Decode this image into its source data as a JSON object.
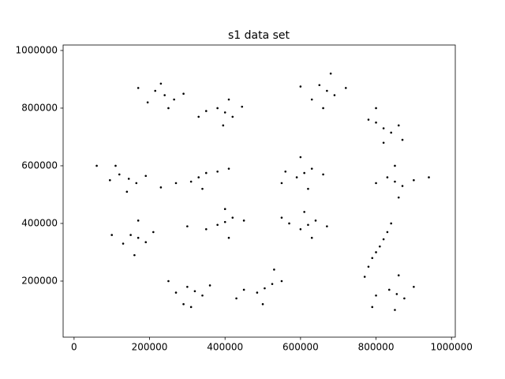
{
  "chart_data": {
    "type": "scatter",
    "title": "s1 data set",
    "color": "#000000",
    "x": [
      240000,
      215000,
      265000,
      230000,
      290000,
      195000,
      250000,
      170000,
      400000,
      380000,
      420000,
      350000,
      445000,
      395000,
      330000,
      410000,
      670000,
      650000,
      690000,
      680000,
      630000,
      720000,
      660000,
      600000,
      820000,
      800000,
      840000,
      780000,
      860000,
      820000,
      800000,
      870000,
      145000,
      120000,
      165000,
      95000,
      190000,
      140000,
      60000,
      110000,
      330000,
      310000,
      350000,
      270000,
      380000,
      230000,
      410000,
      340000,
      610000,
      590000,
      630000,
      560000,
      660000,
      600000,
      620000,
      550000,
      850000,
      830000,
      870000,
      800000,
      900000,
      850000,
      860000,
      940000,
      400000,
      380000,
      420000,
      350000,
      450000,
      300000,
      400000,
      410000,
      620000,
      600000,
      640000,
      570000,
      670000,
      610000,
      630000,
      550000,
      170000,
      150000,
      190000,
      130000,
      210000,
      170000,
      160000,
      100000,
      770000,
      780000,
      790000,
      800000,
      810000,
      820000,
      830000,
      840000,
      320000,
      300000,
      340000,
      270000,
      360000,
      310000,
      250000,
      290000,
      505000,
      485000,
      525000,
      450000,
      550000,
      500000,
      430000,
      530000,
      855000,
      835000,
      875000,
      800000,
      900000,
      850000,
      860000,
      790000
    ],
    "values": [
      845000,
      860000,
      830000,
      885000,
      850000,
      820000,
      800000,
      870000,
      785000,
      800000,
      770000,
      790000,
      805000,
      740000,
      770000,
      830000,
      860000,
      880000,
      845000,
      920000,
      830000,
      870000,
      800000,
      875000,
      730000,
      750000,
      715000,
      760000,
      740000,
      680000,
      800000,
      690000,
      555000,
      570000,
      540000,
      550000,
      565000,
      510000,
      600000,
      600000,
      560000,
      545000,
      575000,
      540000,
      580000,
      525000,
      590000,
      520000,
      575000,
      560000,
      590000,
      580000,
      570000,
      630000,
      520000,
      540000,
      545000,
      560000,
      530000,
      540000,
      550000,
      600000,
      490000,
      560000,
      405000,
      395000,
      420000,
      380000,
      410000,
      390000,
      450000,
      350000,
      395000,
      380000,
      410000,
      400000,
      390000,
      440000,
      350000,
      420000,
      350000,
      360000,
      335000,
      330000,
      370000,
      410000,
      290000,
      360000,
      215000,
      250000,
      280000,
      300000,
      320000,
      345000,
      370000,
      400000,
      165000,
      180000,
      150000,
      160000,
      185000,
      110000,
      200000,
      120000,
      175000,
      160000,
      190000,
      170000,
      200000,
      120000,
      140000,
      240000,
      155000,
      170000,
      140000,
      150000,
      180000,
      100000,
      220000,
      110000
    ],
    "xlim": [
      -29000,
      1010000
    ],
    "ylim": [
      5500,
      1019000
    ],
    "xticks": [
      0,
      200000,
      400000,
      600000,
      800000,
      1000000
    ],
    "yticks": [
      200000,
      400000,
      600000,
      800000,
      1000000
    ]
  }
}
